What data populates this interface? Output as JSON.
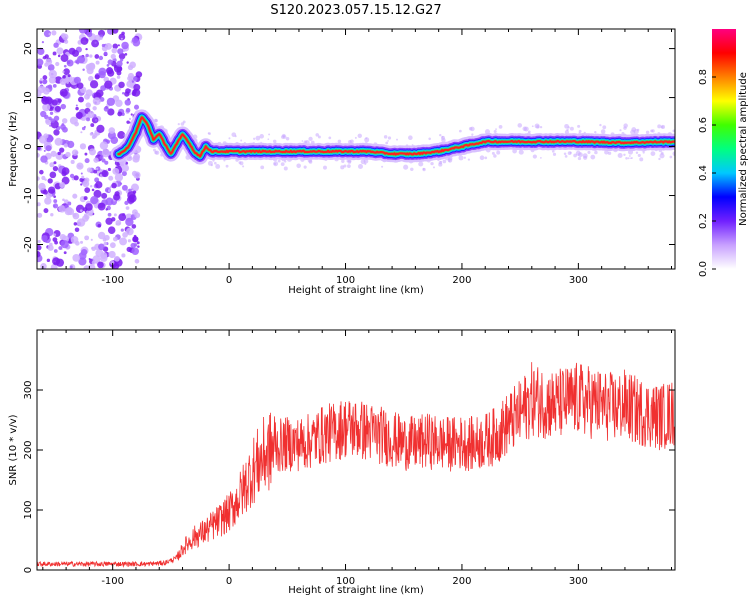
{
  "figure_title": "S120.2023.057.15.12.G27",
  "colors": {
    "snr_line": "#f03030",
    "axis": "#000000",
    "ridge": "#ff2020",
    "scatter": "#8a2be2",
    "background": "#ffffff"
  },
  "chart_data": [
    {
      "type": "heatmap",
      "title": "",
      "xlabel": "Height of straight line (km)",
      "ylabel": "Frequency (Hz)",
      "xlim": [
        -165,
        383
      ],
      "ylim": [
        -25,
        24
      ],
      "xticks": [
        -100,
        0,
        100,
        200,
        300
      ],
      "yticks": [
        -20,
        -10,
        0,
        10,
        20
      ],
      "xtick_labels": [
        "-100",
        "0",
        "100",
        "200",
        "300"
      ],
      "ytick_labels": [
        "-20",
        "-10",
        "0",
        "10",
        "20"
      ],
      "noise_region_x": [
        -165,
        -77
      ],
      "ridge": {
        "x": [
          -95,
          -90,
          -85,
          -80,
          -75,
          -70,
          -65,
          -60,
          -55,
          -50,
          -45,
          -40,
          -35,
          -30,
          -25,
          -20,
          -15,
          -10,
          0,
          50,
          100,
          120,
          140,
          160,
          180,
          200,
          220,
          260,
          300,
          340,
          383
        ],
        "y": [
          -1.5,
          -1,
          0.5,
          3,
          6,
          4.5,
          1.5,
          2.5,
          0.5,
          -1.5,
          0.5,
          2.5,
          1,
          -1,
          -2,
          0,
          -1,
          -1,
          -1,
          -1,
          -1,
          -1,
          -1.5,
          -1.5,
          -1,
          0,
          1,
          1,
          1,
          0.8,
          1
        ]
      },
      "colorbar": {
        "label": "Normalized spectral amplitude",
        "range": [
          0,
          1
        ],
        "ticks": [
          0.0,
          0.2,
          0.4,
          0.6,
          0.8
        ],
        "tick_labels": [
          "0.0",
          "0.2",
          "0.4",
          "0.6",
          "0.8"
        ],
        "colors": [
          "#ffffff",
          "#c8a0ff",
          "#7020ff",
          "#0000ff",
          "#00c8ff",
          "#00ff80",
          "#40ff00",
          "#ffff00",
          "#ff8000",
          "#ff0000",
          "#ff0080"
        ]
      }
    },
    {
      "type": "line",
      "title": "",
      "xlabel": "Height of straight line (km)",
      "ylabel": "SNR (10 * v/v)",
      "xlim": [
        -165,
        383
      ],
      "ylim": [
        0,
        400
      ],
      "xticks": [
        -100,
        0,
        100,
        200,
        300
      ],
      "yticks": [
        0,
        100,
        200,
        300
      ],
      "xtick_labels": [
        "-100",
        "0",
        "100",
        "200",
        "300"
      ],
      "ytick_labels": [
        "0",
        "100",
        "200",
        "300"
      ],
      "series": [
        {
          "x": [
            -165,
            -150,
            -130,
            -110,
            -90,
            -70,
            -55,
            -45,
            -38,
            -30,
            -20,
            -10,
            0,
            10,
            20,
            30,
            40,
            50,
            60,
            70,
            80,
            90,
            100,
            110,
            120,
            130,
            140,
            150,
            160,
            170,
            180,
            190,
            200,
            210,
            220,
            230,
            240,
            250,
            260,
            270,
            280,
            290,
            300,
            310,
            320,
            330,
            340,
            350,
            360,
            370,
            383
          ],
          "y": [
            10,
            10,
            10,
            10,
            10,
            10,
            12,
            20,
            40,
            55,
            65,
            80,
            95,
            125,
            165,
            190,
            205,
            210,
            210,
            215,
            225,
            230,
            238,
            235,
            230,
            225,
            218,
            212,
            210,
            215,
            212,
            210,
            212,
            210,
            215,
            225,
            245,
            260,
            285,
            280,
            275,
            280,
            285,
            280,
            275,
            270,
            275,
            265,
            260,
            255,
            262
          ]
        }
      ]
    }
  ]
}
